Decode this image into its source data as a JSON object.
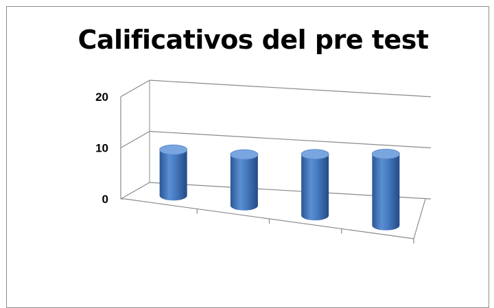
{
  "chart_data": {
    "type": "bar",
    "style": "3d-cylinder",
    "title": "Calificativos del pre test",
    "categories": [
      "",
      "",
      "",
      ""
    ],
    "values": [
      9,
      10,
      12,
      14
    ],
    "ylim": [
      0,
      20
    ],
    "yticks": [
      "0",
      "10",
      "20"
    ],
    "grid": true,
    "legend": "none",
    "colors": {
      "bar": "#4a7ec4",
      "bar_dark": "#2b5694",
      "bar_top": "#7aa6df",
      "axis": "#8a8a8a"
    }
  }
}
